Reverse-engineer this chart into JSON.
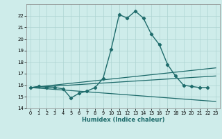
{
  "xlabel": "Humidex (Indice chaleur)",
  "background_color": "#ceecea",
  "grid_color": "#add4d2",
  "line_color": "#1e6b6b",
  "xlim": [
    -0.5,
    23.5
  ],
  "ylim": [
    14,
    23
  ],
  "yticks": [
    14,
    15,
    16,
    17,
    18,
    19,
    20,
    21,
    22
  ],
  "xticks": [
    0,
    1,
    2,
    3,
    4,
    5,
    6,
    7,
    8,
    9,
    10,
    11,
    12,
    13,
    14,
    15,
    16,
    17,
    18,
    19,
    20,
    21,
    22,
    23
  ],
  "series": [
    {
      "x": [
        0,
        1,
        2,
        3,
        4,
        5,
        6,
        7,
        8,
        9,
        10,
        11,
        12,
        13,
        14,
        15,
        16,
        17,
        18,
        19,
        20,
        21,
        22
      ],
      "y": [
        15.8,
        15.9,
        15.8,
        15.8,
        15.7,
        14.9,
        15.3,
        15.5,
        15.8,
        16.6,
        19.1,
        22.1,
        21.8,
        22.4,
        21.8,
        20.4,
        19.5,
        17.8,
        16.8,
        16.0,
        15.9,
        15.8,
        15.8
      ],
      "marker": "D",
      "markersize": 2.2,
      "linewidth": 1.0
    },
    {
      "x": [
        0,
        23
      ],
      "y": [
        15.8,
        17.5
      ],
      "marker": null,
      "markersize": 0,
      "linewidth": 0.9
    },
    {
      "x": [
        0,
        23
      ],
      "y": [
        15.8,
        16.8
      ],
      "marker": null,
      "markersize": 0,
      "linewidth": 0.9
    },
    {
      "x": [
        0,
        23
      ],
      "y": [
        15.8,
        14.6
      ],
      "marker": null,
      "markersize": 0,
      "linewidth": 0.9
    }
  ]
}
